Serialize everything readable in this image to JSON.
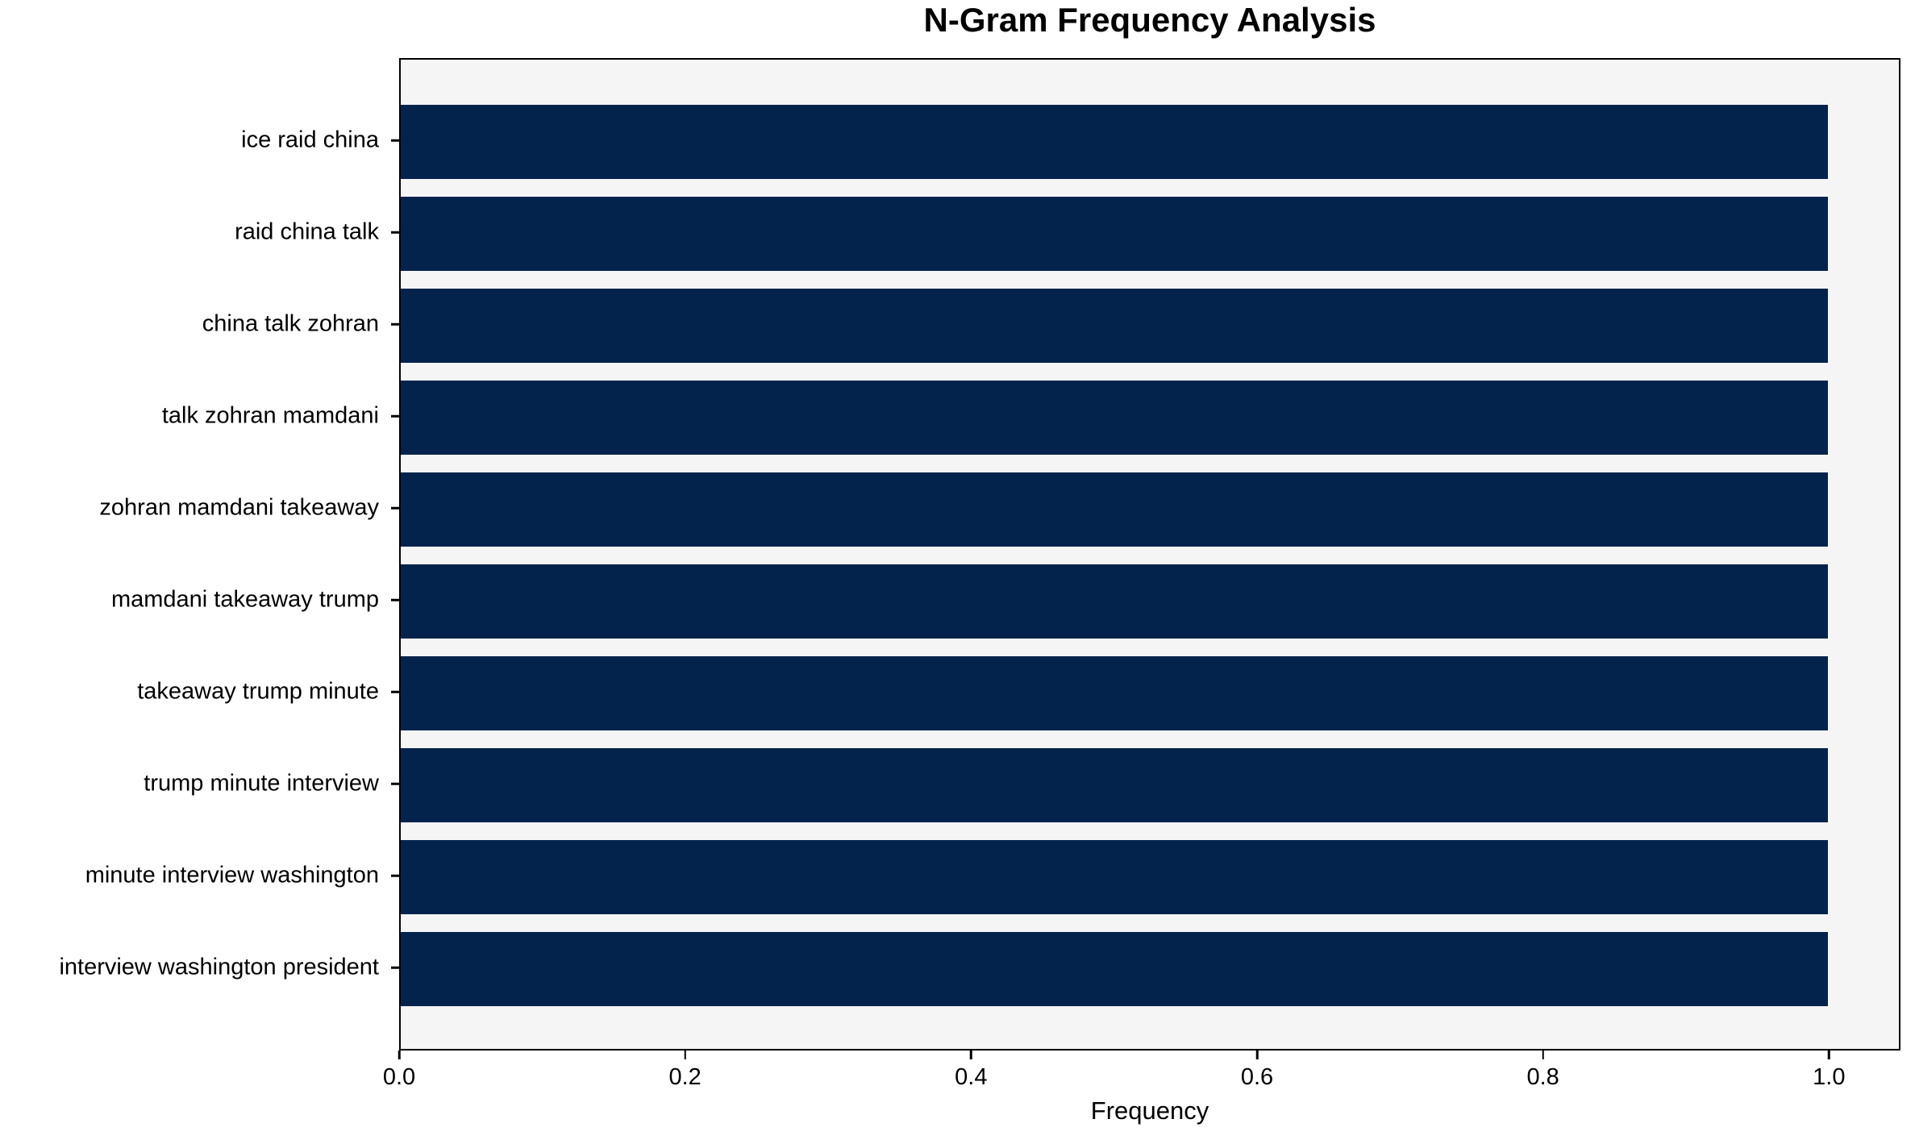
{
  "chart_data": {
    "type": "bar",
    "orientation": "horizontal",
    "title": "N-Gram Frequency Analysis",
    "xlabel": "Frequency",
    "ylabel": "",
    "categories": [
      "ice raid china",
      "raid china talk",
      "china talk zohran",
      "talk zohran mamdani",
      "zohran mamdani takeaway",
      "mamdani takeaway trump",
      "takeaway trump minute",
      "trump minute interview",
      "minute interview washington",
      "interview washington president"
    ],
    "values": [
      1.0,
      1.0,
      1.0,
      1.0,
      1.0,
      1.0,
      1.0,
      1.0,
      1.0,
      1.0
    ],
    "xlim": [
      0,
      1.05
    ],
    "xticks": [
      0.0,
      0.2,
      0.4,
      0.6,
      0.8,
      1.0
    ],
    "xtick_labels": [
      "0.0",
      "0.2",
      "0.4",
      "0.6",
      "0.8",
      "1.0"
    ],
    "grid": false,
    "legend": null,
    "colors": {
      "bar": "#03234d",
      "plot_background": "#f5f5f5",
      "figure_background": "#ffffff",
      "spine": "#000000",
      "text": "#000000"
    }
  }
}
